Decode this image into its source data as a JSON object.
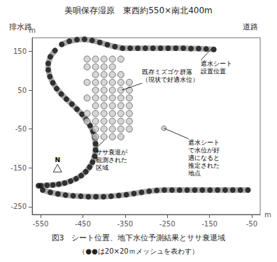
{
  "chart_data": {
    "type": "scatter",
    "title": "美唄保存湿原　東西約550×南北400m",
    "top_labels": {
      "left": "排水路",
      "right": "道路"
    },
    "caption": [
      "図3　シート位置、地下水位予測結果とササ衰退域",
      "（●●は20×20ｍメッシュを表わす）"
    ],
    "xlabel": "m",
    "ylabel": "m",
    "xlim": [
      -570,
      -30
    ],
    "ylim": [
      -270,
      185
    ],
    "xticks": [
      -550,
      -450,
      -350,
      -250,
      -150,
      -50
    ],
    "yticks": [
      -250,
      -150,
      -50,
      50,
      150
    ],
    "grid": false,
    "series": [
      {
        "type": "line",
        "marker": "none",
        "color": "#aaaaaa",
        "values": [
          [
            -500,
            168
          ],
          [
            -482,
            176
          ],
          [
            -464,
            180
          ],
          [
            -446,
            181
          ],
          [
            -428,
            178
          ],
          [
            -410,
            173
          ],
          [
            -392,
            167
          ],
          [
            -374,
            162
          ],
          [
            -356,
            158
          ],
          [
            -338,
            158
          ],
          [
            -320,
            158
          ],
          [
            -302,
            158
          ],
          [
            -284,
            158
          ],
          [
            -266,
            158
          ],
          [
            -248,
            158
          ],
          [
            -230,
            158
          ],
          [
            -212,
            158
          ],
          [
            -194,
            157
          ],
          [
            -176,
            157
          ],
          [
            -158,
            156
          ],
          [
            -140,
            155
          ]
        ]
      },
      {
        "type": "line",
        "marker": "none",
        "color": "#aaaaaa",
        "values": [
          [
            -516,
            152
          ],
          [
            -527,
            136
          ],
          [
            -532,
            119
          ],
          [
            -532,
            102
          ],
          [
            -528,
            85
          ],
          [
            -521,
            69
          ],
          [
            -512,
            54
          ],
          [
            -501,
            40
          ],
          [
            -489,
            27
          ],
          [
            -476,
            14
          ],
          [
            -464,
            1
          ],
          [
            -452,
            -12
          ],
          [
            -442,
            -26
          ],
          [
            -433,
            -41
          ],
          [
            -426,
            -56
          ],
          [
            -422,
            -72
          ],
          [
            -420,
            -88
          ],
          [
            -420,
            -104
          ],
          [
            -422,
            -120
          ],
          [
            -427,
            -135
          ],
          [
            -434,
            -148
          ],
          [
            -443,
            -160
          ],
          [
            -454,
            -170
          ],
          [
            -466,
            -178
          ],
          [
            -479,
            -184
          ],
          [
            -493,
            -189
          ],
          [
            -507,
            -192
          ],
          [
            -521,
            -194
          ],
          [
            -535,
            -195
          ],
          [
            -549,
            -196
          ],
          [
            -555,
            -196
          ]
        ]
      },
      {
        "type": "line",
        "marker": "none",
        "color": "#aaaaaa",
        "values": [
          [
            -545,
            -207
          ],
          [
            -527,
            -213
          ],
          [
            -509,
            -217
          ],
          [
            -491,
            -220
          ],
          [
            -473,
            -222
          ],
          [
            -455,
            -223
          ],
          [
            -437,
            -224
          ],
          [
            -419,
            -224
          ],
          [
            -401,
            -224
          ],
          [
            -383,
            -223
          ],
          [
            -365,
            -221
          ],
          [
            -347,
            -219
          ],
          [
            -329,
            -216
          ],
          [
            -311,
            -213
          ],
          [
            -293,
            -210
          ],
          [
            -275,
            -208
          ],
          [
            -257,
            -207
          ],
          [
            -239,
            -207
          ],
          [
            -221,
            -207
          ],
          [
            -203,
            -207
          ],
          [
            -185,
            -207
          ],
          [
            -167,
            -207
          ],
          [
            -149,
            -207
          ],
          [
            -131,
            -207
          ],
          [
            -113,
            -207
          ],
          [
            -95,
            -207
          ],
          [
            -77,
            -207
          ],
          [
            -59,
            -207
          ]
        ]
      },
      {
        "type": "scatter",
        "marker": "circle",
        "color": "#111111",
        "values": [
          [
            -500,
            168
          ],
          [
            -482,
            176
          ],
          [
            -464,
            180
          ],
          [
            -446,
            181
          ],
          [
            -428,
            178
          ],
          [
            -410,
            173
          ],
          [
            -392,
            167
          ],
          [
            -374,
            162
          ],
          [
            -356,
            158
          ],
          [
            -338,
            158
          ],
          [
            -320,
            158
          ],
          [
            -302,
            158
          ],
          [
            -284,
            158
          ],
          [
            -266,
            158
          ],
          [
            -248,
            158
          ],
          [
            -230,
            158
          ],
          [
            -212,
            158
          ],
          [
            -194,
            157
          ],
          [
            -176,
            157
          ],
          [
            -158,
            156
          ],
          [
            -140,
            155
          ],
          [
            -516,
            152
          ],
          [
            -527,
            136
          ],
          [
            -532,
            119
          ],
          [
            -532,
            102
          ],
          [
            -528,
            85
          ],
          [
            -521,
            69
          ],
          [
            -512,
            54
          ],
          [
            -501,
            40
          ],
          [
            -489,
            27
          ],
          [
            -476,
            14
          ],
          [
            -464,
            1
          ],
          [
            -452,
            -12
          ],
          [
            -442,
            -26
          ],
          [
            -433,
            -41
          ],
          [
            -426,
            -56
          ],
          [
            -422,
            -72
          ],
          [
            -420,
            -88
          ],
          [
            -420,
            -104
          ],
          [
            -422,
            -120
          ],
          [
            -427,
            -135
          ],
          [
            -434,
            -148
          ],
          [
            -443,
            -160
          ],
          [
            -454,
            -170
          ],
          [
            -466,
            -178
          ],
          [
            -479,
            -184
          ],
          [
            -493,
            -189
          ],
          [
            -507,
            -192
          ],
          [
            -521,
            -194
          ],
          [
            -535,
            -195
          ],
          [
            -549,
            -196
          ],
          [
            -555,
            -196
          ],
          [
            -545,
            -207
          ],
          [
            -527,
            -213
          ],
          [
            -509,
            -217
          ],
          [
            -491,
            -220
          ],
          [
            -473,
            -222
          ],
          [
            -455,
            -223
          ],
          [
            -437,
            -224
          ],
          [
            -419,
            -224
          ],
          [
            -401,
            -224
          ],
          [
            -383,
            -223
          ],
          [
            -365,
            -221
          ],
          [
            -347,
            -219
          ],
          [
            -329,
            -216
          ],
          [
            -311,
            -213
          ],
          [
            -293,
            -210
          ],
          [
            -275,
            -208
          ],
          [
            -257,
            -207
          ],
          [
            -239,
            -207
          ],
          [
            -221,
            -207
          ],
          [
            -203,
            -207
          ],
          [
            -185,
            -207
          ],
          [
            -167,
            -207
          ],
          [
            -149,
            -207
          ],
          [
            -131,
            -207
          ],
          [
            -113,
            -207
          ],
          [
            -95,
            -207
          ],
          [
            -77,
            -207
          ],
          [
            -59,
            -207
          ]
        ]
      },
      {
        "type": "scatter",
        "marker": "circle",
        "color": "#cccccc",
        "values": [
          [
            -440,
            130
          ],
          [
            -420,
            130
          ],
          [
            -400,
            130
          ],
          [
            -380,
            130
          ],
          [
            -360,
            130
          ],
          [
            -440,
            110
          ],
          [
            -420,
            110
          ],
          [
            -400,
            110
          ],
          [
            -380,
            110
          ],
          [
            -420,
            90
          ],
          [
            -400,
            90
          ],
          [
            -380,
            90
          ],
          [
            -360,
            90
          ],
          [
            -440,
            70
          ],
          [
            -420,
            70
          ],
          [
            -400,
            70
          ],
          [
            -380,
            70
          ],
          [
            -360,
            70
          ],
          [
            -340,
            70
          ],
          [
            -420,
            50
          ],
          [
            -400,
            50
          ],
          [
            -380,
            50
          ],
          [
            -360,
            50
          ],
          [
            -340,
            50
          ],
          [
            -440,
            30
          ],
          [
            -420,
            30
          ],
          [
            -400,
            30
          ],
          [
            -380,
            30
          ],
          [
            -360,
            30
          ],
          [
            -340,
            30
          ],
          [
            -420,
            10
          ],
          [
            -400,
            10
          ],
          [
            -380,
            10
          ],
          [
            -360,
            10
          ],
          [
            -340,
            10
          ],
          [
            -440,
            -10
          ],
          [
            -420,
            -10
          ],
          [
            -400,
            -10
          ],
          [
            -380,
            -10
          ],
          [
            -360,
            -10
          ],
          [
            -340,
            -10
          ],
          [
            -440,
            -30
          ],
          [
            -420,
            -30
          ],
          [
            -400,
            -30
          ],
          [
            -380,
            -30
          ],
          [
            -360,
            -30
          ],
          [
            -340,
            -30
          ],
          [
            -420,
            -50
          ],
          [
            -400,
            -50
          ],
          [
            -380,
            -50
          ],
          [
            -360,
            -50
          ],
          [
            -340,
            -50
          ],
          [
            -420,
            -70
          ],
          [
            -400,
            -70
          ],
          [
            -380,
            -70
          ],
          [
            -360,
            -70
          ]
        ]
      },
      {
        "type": "scatter",
        "marker": "circle",
        "color": "#cccccc",
        "values": [
          [
            -258,
            -48
          ]
        ]
      }
    ],
    "compass": {
      "text": "N",
      "xy": [
        -510,
        -148
      ]
    },
    "annotations": [
      {
        "text": "遮水シート\n設置位置",
        "xy": [
          -145,
          157
        ],
        "xytext": [
          -170,
          128
        ]
      },
      {
        "text": "既存ミズゴケ群落\n（現状で好適水位）",
        "xy": [
          -358,
          50
        ],
        "xytext": [
          -310,
          68
        ]
      },
      {
        "text": "ササ衰退が\n観測された\n区域",
        "xy": [
          -400,
          -80
        ],
        "xytext": [
          -420,
          -100
        ]
      },
      {
        "text": "遮水シート\nで水位が好\n適になると\n推定された\n地点",
        "xy": [
          -258,
          -48
        ],
        "xytext": [
          -200,
          -75
        ]
      }
    ]
  }
}
